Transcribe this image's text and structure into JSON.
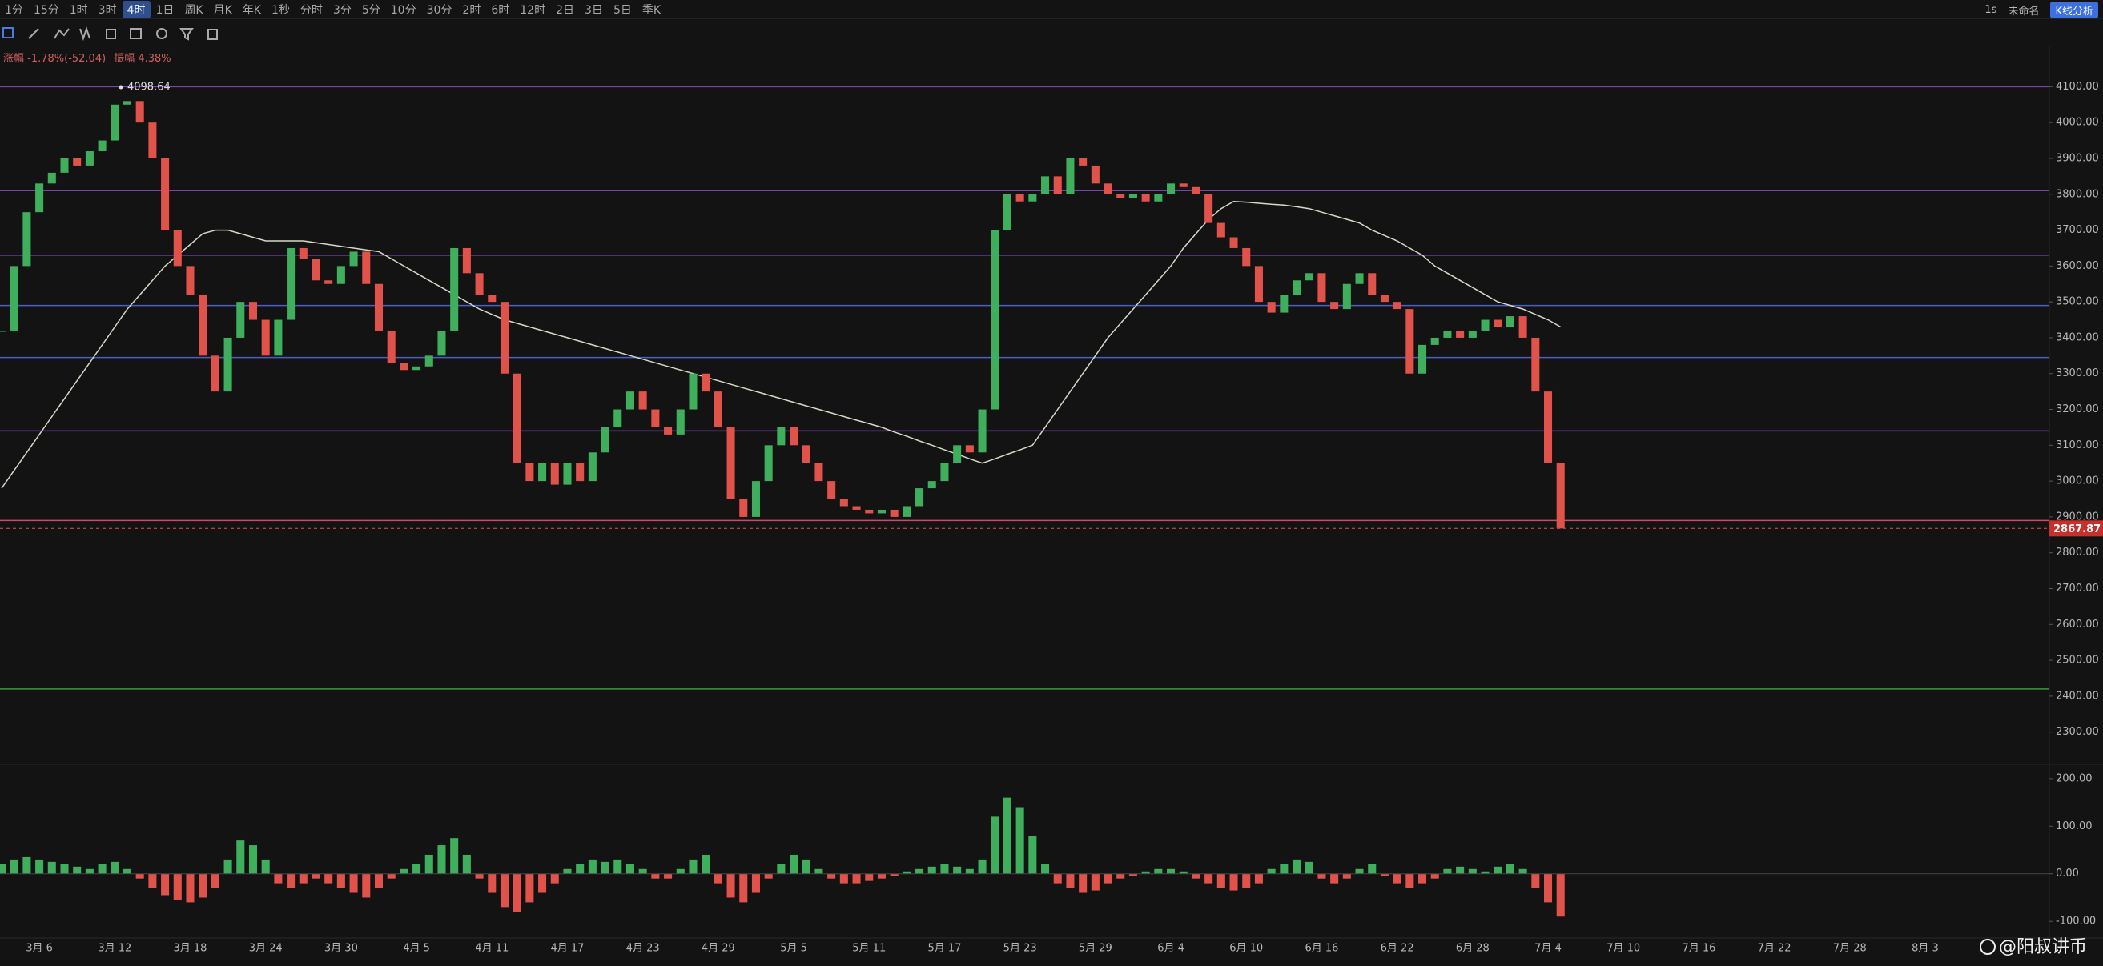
{
  "toolbar": {
    "intervals": [
      "1分",
      "15分",
      "1时",
      "3时",
      "4时",
      "1日",
      "周K",
      "月K",
      "年K",
      "1秒",
      "分时",
      "3分",
      "5分",
      "10分",
      "30分",
      "2时",
      "6时",
      "12时",
      "2日",
      "3日",
      "5日",
      "季K"
    ],
    "active": "4时",
    "right": [
      "1s",
      "未命名"
    ],
    "analysis": "K线分析"
  },
  "info": {
    "change": "涨幅 -1.78%(-52.04)",
    "amplitude": "振幅 4.38%"
  },
  "watermark": "@阳叔讲币",
  "chart_data": {
    "type": "candlestick",
    "up_color": "#3fae5d",
    "down_color": "#e0524a",
    "categories": [
      null,
      null,
      null,
      "3月 6",
      null,
      null,
      null,
      null,
      null,
      "3月 12",
      null,
      null,
      null,
      null,
      null,
      "3月 18",
      null,
      null,
      null,
      null,
      null,
      "3月 24",
      null,
      null,
      null,
      null,
      null,
      "3月 30",
      null,
      null,
      null,
      null,
      null,
      "4月 5",
      null,
      null,
      null,
      null,
      null,
      "4月 11",
      null,
      null,
      null,
      null,
      null,
      "4月 17",
      null,
      null,
      null,
      null,
      null,
      "4月 23",
      null,
      null,
      null,
      null,
      null,
      "4月 29",
      null,
      null,
      null,
      null,
      null,
      "5月 5",
      null,
      null,
      null,
      null,
      null,
      "5月 11",
      null,
      null,
      null,
      null,
      null,
      "5月 17",
      null,
      null,
      null,
      null,
      null,
      "5月 23",
      null,
      null,
      null,
      null,
      null,
      "5月 29",
      null,
      null,
      null,
      null,
      null,
      "6月 4",
      null,
      null,
      null,
      null,
      null,
      "6月 10",
      null,
      null,
      null,
      null,
      null,
      "6月 16",
      null,
      null,
      null,
      null,
      null,
      "6月 22",
      null,
      null,
      null,
      null,
      null,
      "6月 28",
      null,
      null,
      null,
      null,
      null,
      "7月 4",
      null,
      null,
      null,
      null,
      null,
      "7月 10",
      null,
      null,
      null,
      null,
      null,
      "7月 16",
      null,
      null,
      null,
      null,
      null,
      "7月 22",
      null,
      null,
      null,
      null,
      null,
      "7月 28",
      null,
      null,
      null,
      null,
      null,
      "8月 3",
      null,
      null,
      null,
      null,
      null,
      null,
      null,
      null,
      null
    ],
    "close": [
      3420,
      3600,
      3750,
      3830,
      3860,
      3900,
      3880,
      3920,
      3950,
      4050,
      4060,
      4000,
      3900,
      3700,
      3600,
      3520,
      3350,
      3250,
      3400,
      3500,
      3450,
      3350,
      3450,
      3650,
      3620,
      3560,
      3550,
      3600,
      3640,
      3550,
      3420,
      3330,
      3310,
      3320,
      3350,
      3420,
      3650,
      3580,
      3520,
      3500,
      3300,
      3050,
      3000,
      3050,
      2990,
      3050,
      3000,
      3080,
      3150,
      3200,
      3250,
      3200,
      3150,
      3130,
      3200,
      3300,
      3250,
      3150,
      2950,
      2900,
      3000,
      3100,
      3150,
      3100,
      3050,
      3000,
      2950,
      2930,
      2920,
      2910,
      2920,
      2900,
      2930,
      2980,
      3000,
      3050,
      3100,
      3080,
      3200,
      3700,
      3800,
      3780,
      3800,
      3850,
      3800,
      3900,
      3880,
      3830,
      3800,
      3790,
      3800,
      3780,
      3800,
      3830,
      3820,
      3800,
      3720,
      3680,
      3650,
      3600,
      3500,
      3470,
      3520,
      3560,
      3580,
      3500,
      3480,
      3550,
      3580,
      3520,
      3500,
      3480,
      3300,
      3380,
      3400,
      3420,
      3400,
      3420,
      3450,
      3430,
      3460,
      3400,
      3250,
      3050,
      2867.87,
      null,
      null,
      null,
      null,
      null,
      null,
      null,
      null,
      null,
      null,
      null,
      null,
      null,
      null,
      null,
      null,
      null,
      null,
      null,
      null,
      null,
      null,
      null,
      null,
      null,
      null,
      null,
      null,
      null,
      null,
      null,
      null,
      null,
      null,
      null,
      null,
      null,
      null
    ],
    "ma": {
      "color": "#d8d8c8",
      "values": [
        2980,
        3030,
        3080,
        3130,
        3180,
        3230,
        3280,
        3330,
        3380,
        3430,
        3480,
        3520,
        3560,
        3600,
        3630,
        3660,
        3690,
        3700,
        3700,
        3690,
        3680,
        3670,
        3670,
        3670,
        3670,
        3665,
        3660,
        3655,
        3650,
        3645,
        3640,
        3620,
        3600,
        3580,
        3560,
        3540,
        3520,
        3500,
        3480,
        3465,
        3450,
        3440,
        3430,
        3420,
        3410,
        3400,
        3390,
        3380,
        3370,
        3360,
        3350,
        3340,
        3330,
        3320,
        3310,
        3300,
        3290,
        3280,
        3270,
        3260,
        3250,
        3240,
        3230,
        3220,
        3210,
        3200,
        3190,
        3180,
        3170,
        3160,
        3150,
        3137,
        3125,
        3112,
        3100,
        3087,
        3075,
        3062,
        3050,
        3062,
        3075,
        3087,
        3100,
        3150,
        3200,
        3250,
        3300,
        3350,
        3400,
        3440,
        3480,
        3520,
        3560,
        3600,
        3650,
        3690,
        3730,
        3760,
        3780,
        3778,
        3775,
        3772,
        3770,
        3765,
        3760,
        3750,
        3740,
        3730,
        3720,
        3700,
        3685,
        3670,
        3650,
        3630,
        3600,
        3580,
        3560,
        3540,
        3520,
        3500,
        3490,
        3480,
        3465,
        3450,
        3430,
        null,
        null,
        null,
        null,
        null,
        null,
        null,
        null,
        null,
        null,
        null,
        null,
        null,
        null,
        null,
        null,
        null,
        null,
        null,
        null,
        null,
        null,
        null,
        null,
        null,
        null,
        null,
        null,
        null,
        null,
        null,
        null,
        null,
        null,
        null,
        null,
        null,
        null
      ]
    },
    "ylim": [
      2210,
      4208
    ],
    "yticks": [
      {
        "value": 4100,
        "label": "4100.00"
      },
      {
        "value": 4000,
        "label": "4000.00"
      },
      {
        "value": 3900,
        "label": "3900.00"
      },
      {
        "value": 3800,
        "label": "3800.00"
      },
      {
        "value": 3700,
        "label": "3700.00"
      },
      {
        "value": 3600,
        "label": "3600.00"
      },
      {
        "value": 3500,
        "label": "3500.00"
      },
      {
        "value": 3400,
        "label": "3400.00"
      },
      {
        "value": 3300,
        "label": "3300.00"
      },
      {
        "value": 3200,
        "label": "3200.00"
      },
      {
        "value": 3100,
        "label": "3100.00"
      },
      {
        "value": 3000,
        "label": "3000.00"
      },
      {
        "value": 2900,
        "label": "2900.00"
      },
      {
        "value": 2800,
        "label": "2800.00"
      },
      {
        "value": 2700,
        "label": "2700.00"
      },
      {
        "value": 2600,
        "label": "2600.00"
      },
      {
        "value": 2500,
        "label": "2500.00"
      },
      {
        "value": 2400,
        "label": "2400.00"
      },
      {
        "value": 2300,
        "label": "2300.00"
      }
    ],
    "grid": false,
    "levels": [
      {
        "value": 4100,
        "color": "#7b3fb8"
      },
      {
        "value": 3810,
        "color": "#7b3fb8"
      },
      {
        "value": 3630,
        "color": "#7b3fb8"
      },
      {
        "value": 3490,
        "color": "#4a5fc1"
      },
      {
        "value": 3345,
        "color": "#4a5fc1"
      },
      {
        "value": 3140,
        "color": "#7b3fb8"
      },
      {
        "value": 2890,
        "color": "#c0506a"
      },
      {
        "value": 2420,
        "color": "#3a9a3a"
      }
    ],
    "annotation": {
      "value": 4098.64
    },
    "macd": {
      "values": [
        20,
        30,
        35,
        30,
        25,
        20,
        15,
        10,
        20,
        25,
        10,
        -10,
        -30,
        -45,
        -55,
        -60,
        -50,
        -30,
        30,
        70,
        60,
        30,
        -20,
        -30,
        -20,
        -10,
        -20,
        -30,
        -40,
        -50,
        -30,
        -10,
        10,
        20,
        40,
        60,
        75,
        40,
        -10,
        -40,
        -70,
        -80,
        -60,
        -40,
        -20,
        10,
        20,
        30,
        25,
        30,
        20,
        10,
        -10,
        -10,
        10,
        30,
        40,
        -20,
        -50,
        -60,
        -40,
        -10,
        20,
        40,
        30,
        10,
        -10,
        -20,
        -20,
        -15,
        -10,
        -5,
        5,
        10,
        15,
        20,
        15,
        10,
        30,
        120,
        160,
        140,
        80,
        20,
        -20,
        -30,
        -40,
        -35,
        -20,
        -10,
        -5,
        5,
        10,
        10,
        5,
        -10,
        -20,
        -30,
        -35,
        -30,
        -20,
        10,
        20,
        30,
        25,
        -10,
        -20,
        -10,
        10,
        20,
        -5,
        -20,
        -30,
        -20,
        -10,
        10,
        15,
        10,
        5,
        15,
        20,
        10,
        -30,
        -60,
        -90,
        null,
        null,
        null,
        null,
        null,
        null,
        null,
        null,
        null,
        null,
        null,
        null,
        null,
        null,
        null,
        null,
        null,
        null,
        null,
        null,
        null,
        null,
        null,
        null,
        null,
        null,
        null,
        null,
        null,
        null,
        null,
        null,
        null,
        null,
        null,
        null,
        null,
        null
      ],
      "ylim": [
        -135,
        230
      ],
      "yticks": [
        {
          "value": 200,
          "label": "200.00"
        },
        {
          "value": 100,
          "label": "100.00"
        },
        {
          "value": 0,
          "label": "0.00"
        },
        {
          "value": -100,
          "label": "-100.00"
        }
      ]
    }
  }
}
